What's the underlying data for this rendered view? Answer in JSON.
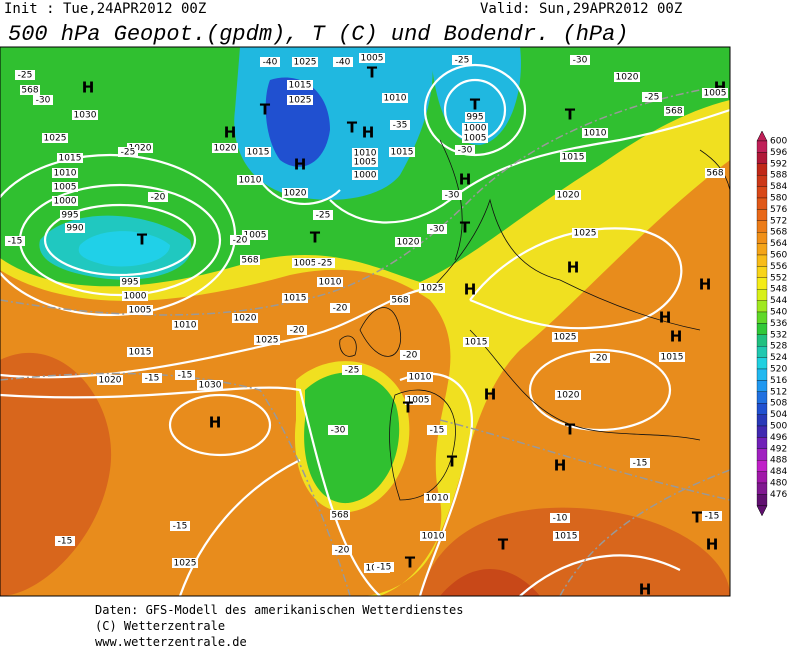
{
  "header": {
    "init": "Init : Tue,24APR2012 00Z",
    "valid": "Valid: Sun,29APR2012 00Z",
    "title": "500 hPa Geopot.(gpdm), T (C) und Bodendr. (hPa)"
  },
  "colorbar": {
    "labels": [
      "600",
      "596",
      "592",
      "588",
      "584",
      "580",
      "576",
      "572",
      "568",
      "564",
      "560",
      "556",
      "552",
      "548",
      "544",
      "540",
      "536",
      "532",
      "528",
      "524",
      "520",
      "516",
      "512",
      "508",
      "504",
      "500",
      "496",
      "492",
      "488",
      "484",
      "480",
      "476"
    ],
    "colors": [
      "#c02058",
      "#b01838",
      "#c02818",
      "#cc3818",
      "#d84818",
      "#e05818",
      "#e86818",
      "#ec7c18",
      "#f09018",
      "#f4a418",
      "#f8bc18",
      "#f8d418",
      "#f4ec18",
      "#d8f018",
      "#a0e820",
      "#60d828",
      "#30c838",
      "#20c080",
      "#20c8b0",
      "#20d0e0",
      "#20b8f0",
      "#2098f0",
      "#2070e0",
      "#2050d0",
      "#2838b8",
      "#4028b0",
      "#7020b8",
      "#a020c0",
      "#c020c8",
      "#a018a8",
      "#801890",
      "#601070"
    ]
  },
  "map_labels": [
    "H",
    "1030",
    "1025",
    "1020",
    "1015",
    "1010",
    "1005",
    "1000",
    "995",
    "990",
    "T",
    "995",
    "1000",
    "1005",
    "1010",
    "1015",
    "1020",
    "1030",
    "H",
    "1025",
    "1025",
    "1020",
    "1015",
    "1010",
    "1005",
    "T",
    "1005",
    "H",
    "1020",
    "1015",
    "1010",
    "1020",
    "H",
    "1025",
    "T",
    "1015",
    "1025",
    "T",
    "1005",
    "1010",
    "T",
    "H",
    "1010",
    "1005",
    "1000",
    "1015",
    "T",
    "995",
    "1000",
    "1005",
    "T",
    "1010",
    "1015",
    "1020",
    "1020",
    "H",
    "T",
    "1020",
    "1025",
    "H",
    "1025",
    "H",
    "1025",
    "H",
    "H",
    "1015",
    "H",
    "1015",
    "1010",
    "1005",
    "H",
    "1020",
    "T",
    "H",
    "T",
    "1010",
    "1010",
    "1015",
    "T",
    "T",
    "1015",
    "T",
    "H",
    "H",
    "H",
    "1005",
    "568",
    "568",
    "T",
    "568",
    "568",
    "568",
    "568",
    "-25",
    "-30",
    "-25",
    "-20",
    "-15",
    "-20",
    "-25",
    "-25",
    "-20",
    "-15",
    "-15",
    "-20",
    "-25",
    "-30",
    "-20",
    "-15",
    "-15",
    "-15",
    "-15",
    "-15",
    "-10",
    "-20",
    "-30",
    "-30",
    "-30",
    "-35",
    "-25",
    "-30",
    "-25",
    "-20",
    "-15",
    "-40",
    "-40"
  ],
  "footer": [
    "Daten: GFS-Modell des amerikanischen Wetterdienstes",
    "(C) Wetterzentrale",
    "www.wetterzentrale.de"
  ]
}
